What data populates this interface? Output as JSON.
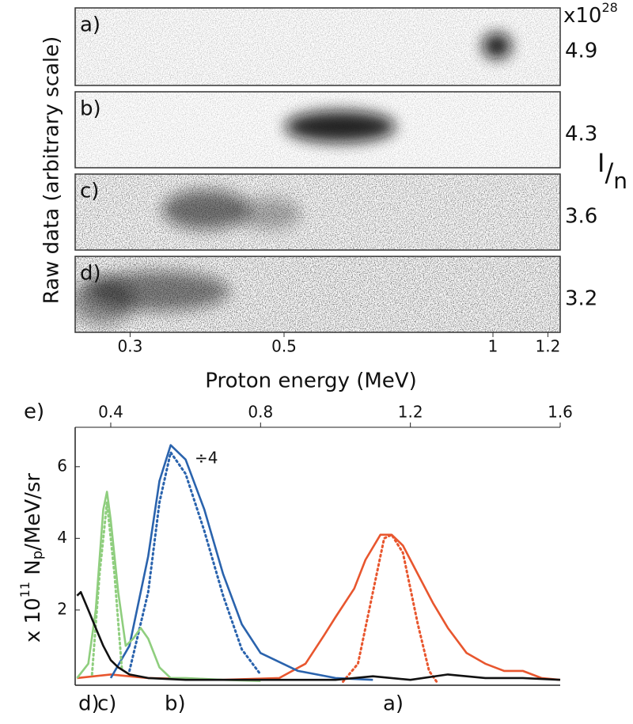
{
  "chart_data": [
    {
      "type": "image-strips",
      "xlabel": "Proton energy (MeV)",
      "ylabel": "Raw data (arbitrary scale)",
      "xscale": "log",
      "xlim": [
        0.25,
        1.25
      ],
      "xticks": [
        0.3,
        0.5,
        1.0,
        1.2
      ],
      "intensity_unit": {
        "base": "x10",
        "exponent": "28"
      },
      "intensity_label": [
        "I",
        "/",
        "n"
      ],
      "panels": [
        {
          "label": "a)",
          "intensity": 4.9
        },
        {
          "label": "b)",
          "intensity": 4.3
        },
        {
          "label": "c)",
          "intensity": 3.6
        },
        {
          "label": "d)",
          "intensity": 3.2
        }
      ]
    },
    {
      "type": "line",
      "label": "e)",
      "ylabel": {
        "prefix": "x 10",
        "exponent": "11",
        "text": " N",
        "subscript": "p",
        "suffix": "/MeV/sr"
      },
      "annotation": "÷4",
      "curve_labels": [
        "d)",
        "c)",
        "b)",
        "a)"
      ],
      "xlim": [
        0.305,
        1.6
      ],
      "xticks": [
        0.4,
        0.8,
        1.2,
        1.6
      ],
      "ylim": [
        -0.1,
        7.1
      ],
      "yticks": [
        2,
        4,
        6
      ],
      "series": [
        {
          "color": "#e8562e",
          "style": "solid",
          "x": [
            0.31,
            0.4,
            0.5,
            0.7,
            0.85,
            0.92,
            0.97,
            1.0,
            1.05,
            1.08,
            1.12,
            1.15,
            1.18,
            1.22,
            1.26,
            1.3,
            1.35,
            1.4,
            1.45,
            1.5,
            1.55,
            1.6
          ],
          "values": [
            0.1,
            0.2,
            0.1,
            0.05,
            0.1,
            0.5,
            1.3,
            1.8,
            2.6,
            3.4,
            4.1,
            4.1,
            3.8,
            3.0,
            2.2,
            1.5,
            0.8,
            0.5,
            0.3,
            0.3,
            0.1,
            0.05
          ]
        },
        {
          "color": "#e8562e",
          "style": "dotted",
          "x": [
            1.02,
            1.06,
            1.1,
            1.13,
            1.15,
            1.18,
            1.22,
            1.25,
            1.27
          ],
          "values": [
            0,
            0.5,
            2.5,
            4.0,
            4.1,
            3.6,
            1.6,
            0.3,
            0
          ]
        },
        {
          "color": "#2a63ad",
          "style": "solid",
          "x": [
            0.4,
            0.45,
            0.5,
            0.53,
            0.56,
            0.6,
            0.65,
            0.7,
            0.75,
            0.8,
            0.9,
            1.0,
            1.1
          ],
          "values": [
            0.1,
            1.0,
            3.5,
            5.6,
            6.6,
            6.2,
            4.8,
            3.0,
            1.6,
            0.8,
            0.3,
            0.1,
            0.05
          ]
        },
        {
          "color": "#2a63ad",
          "style": "dotted",
          "x": [
            0.45,
            0.5,
            0.53,
            0.56,
            0.6,
            0.65,
            0.7,
            0.75,
            0.8
          ],
          "values": [
            0.3,
            2.5,
            5.0,
            6.4,
            5.8,
            4.2,
            2.4,
            0.9,
            0.2
          ]
        },
        {
          "color": "#8fce7e",
          "style": "solid",
          "x": [
            0.31,
            0.34,
            0.36,
            0.38,
            0.39,
            0.4,
            0.42,
            0.44,
            0.46,
            0.48,
            0.5,
            0.53,
            0.56,
            0.6,
            0.7,
            0.8
          ],
          "values": [
            0.1,
            0.5,
            2.0,
            4.8,
            5.3,
            4.5,
            2.5,
            1.0,
            1.2,
            1.5,
            1.2,
            0.4,
            0.1,
            0.1,
            0.05,
            0.02
          ]
        },
        {
          "color": "#8fce7e",
          "style": "dotted",
          "x": [
            0.35,
            0.37,
            0.39,
            0.41,
            0.43
          ],
          "values": [
            0.2,
            3.0,
            5.0,
            3.0,
            0.3
          ]
        },
        {
          "color": "#111111",
          "style": "solid",
          "x": [
            0.31,
            0.32,
            0.34,
            0.36,
            0.38,
            0.4,
            0.42,
            0.45,
            0.5,
            0.6,
            0.8,
            1.0,
            1.1,
            1.2,
            1.3,
            1.4,
            1.5,
            1.6
          ],
          "values": [
            2.4,
            2.5,
            2.0,
            1.5,
            1.0,
            0.6,
            0.4,
            0.2,
            0.1,
            0.05,
            0.05,
            0.05,
            0.15,
            0.05,
            0.2,
            0.1,
            0.1,
            0.05
          ]
        }
      ]
    }
  ]
}
